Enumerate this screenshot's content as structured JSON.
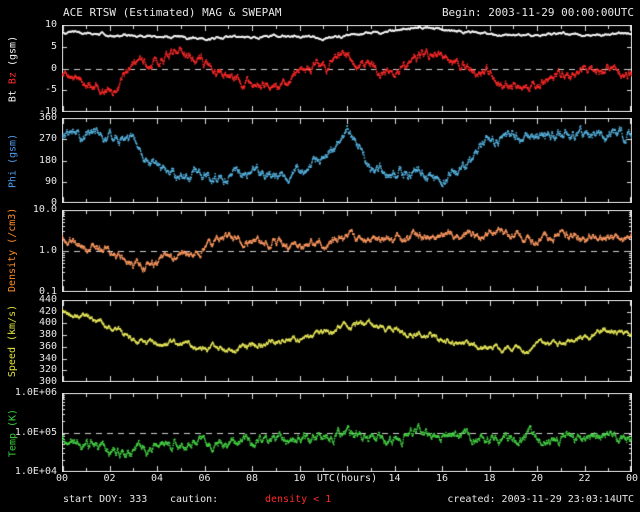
{
  "header": {
    "title": "ACE RTSW (Estimated) MAG & SWEPAM",
    "begin": "Begin: 2003-11-29 00:00:00UTC"
  },
  "footer": {
    "start_doy": "start DOY: 333",
    "caution_label": "caution:",
    "caution_value": "density < 1",
    "created": "created: 2003-11-29 23:03:14UTC"
  },
  "x_axis": {
    "label": "UTC(hours)",
    "ticks": [
      "00",
      "02",
      "04",
      "06",
      "08",
      "10",
      "12",
      "14",
      "16",
      "18",
      "20",
      "22",
      "00"
    ]
  },
  "colors": {
    "background": "#000000",
    "frame": "#e0e0e0",
    "text": "#e8e8e8",
    "dashed": "#d0d0d0",
    "caution_red": "#ff2a2a",
    "bt_white": "#f5f5f5",
    "bz_red": "#ff2a2a",
    "phi_blue": "#58b6e4",
    "density_orange": "#ff9a62",
    "speed_yellow": "#e6e65a",
    "temp_green": "#46d446"
  },
  "chart_data": {
    "type": "scatter",
    "title": "ACE RTSW (Estimated) MAG & SWEPAM",
    "x_label": "UTC(hours)",
    "x_range_hours": [
      0,
      24
    ],
    "anchors_hours": [
      0,
      1,
      2,
      3,
      4,
      5,
      6,
      7,
      8,
      9,
      10,
      11,
      12,
      13,
      14,
      15,
      16,
      17,
      18,
      19,
      20,
      21,
      22,
      23,
      24
    ],
    "panels": [
      {
        "name": "bt-bz",
        "scale": "linear",
        "ylim": [
          -10,
          10
        ],
        "yticks": [
          {
            "value": 10,
            "label": "10"
          },
          {
            "value": 5,
            "label": "5"
          },
          {
            "value": 0,
            "label": "0"
          },
          {
            "value": -5,
            "label": "-5"
          },
          {
            "value": -10,
            "label": "-10"
          }
        ],
        "dashed_at": 0,
        "y_label_parts": [
          {
            "text": "Bt ",
            "color": "#f5f5f5"
          },
          {
            "text": "Bz ",
            "color": "#ff2a2a"
          },
          {
            "text": "(gsm)",
            "color": "#f5f5f5"
          }
        ],
        "series": [
          {
            "name": "Bt",
            "color": "#f5f5f5",
            "noise": 0.5,
            "values": [
              8.5,
              8.3,
              7.6,
              7.4,
              7.3,
              7.0,
              6.6,
              7.0,
              7.4,
              7.5,
              7.4,
              7.1,
              7.6,
              8.0,
              8.8,
              9.5,
              9.0,
              8.4,
              8.0,
              7.9,
              7.6,
              8.0,
              7.6,
              7.9,
              8.1
            ]
          },
          {
            "name": "Bz",
            "color": "#ff2a2a",
            "noise": 2.0,
            "values": [
              -1,
              -4,
              -5,
              0,
              2,
              3,
              1,
              -2,
              -4,
              -4.5,
              -1,
              1,
              3,
              0,
              -2,
              3,
              4,
              1,
              -1,
              -4,
              -3,
              -2,
              0,
              -1,
              -1
            ]
          }
        ]
      },
      {
        "name": "phi",
        "scale": "linear",
        "ylim": [
          0,
          360
        ],
        "yticks": [
          {
            "value": 360,
            "label": "360"
          },
          {
            "value": 270,
            "label": "270"
          },
          {
            "value": 180,
            "label": "180"
          },
          {
            "value": 90,
            "label": "90"
          },
          {
            "value": 0,
            "label": "0"
          }
        ],
        "dashed_at": null,
        "y_label_parts": [
          {
            "text": "Phi ",
            "color": "#4f9cf0"
          },
          {
            "text": "(gsm)",
            "color": "#4f9cf0"
          }
        ],
        "series": [
          {
            "name": "Phi",
            "color": "#58b6e4",
            "noise": 40,
            "values": [
              285,
              295,
              285,
              260,
              145,
              115,
              125,
              115,
              150,
              125,
              135,
              170,
              320,
              140,
              115,
              125,
              105,
              145,
              275,
              290,
              270,
              280,
              295,
              285,
              280
            ]
          }
        ]
      },
      {
        "name": "density",
        "scale": "log",
        "ylim": [
          0.1,
          10
        ],
        "yticks": [
          {
            "value": 10,
            "label": "10.0"
          },
          {
            "value": 1,
            "label": "1.0"
          },
          {
            "value": 0.1,
            "label": "0.1"
          }
        ],
        "dashed_at": 1.0,
        "y_label_parts": [
          {
            "text": "Density ",
            "color": "#ff8c28"
          },
          {
            "text": "(/cm3)",
            "color": "#ff8c28"
          }
        ],
        "series": [
          {
            "name": "Density",
            "color": "#ff9a62",
            "noise": 0.18,
            "values": [
              2.0,
              1.5,
              0.9,
              0.55,
              0.45,
              0.8,
              1.3,
              2.0,
              2.0,
              1.5,
              1.2,
              1.6,
              2.0,
              2.0,
              1.8,
              2.4,
              2.0,
              2.5,
              3.0,
              2.5,
              2.0,
              2.4,
              2.0,
              2.2,
              2.0
            ]
          }
        ]
      },
      {
        "name": "speed",
        "scale": "linear",
        "ylim": [
          300,
          440
        ],
        "yticks": [
          {
            "value": 440,
            "label": "440"
          },
          {
            "value": 420,
            "label": "420"
          },
          {
            "value": 400,
            "label": "400"
          },
          {
            "value": 380,
            "label": "380"
          },
          {
            "value": 360,
            "label": "360"
          },
          {
            "value": 340,
            "label": "340"
          },
          {
            "value": 320,
            "label": "320"
          },
          {
            "value": 300,
            "label": "300"
          }
        ],
        "dashed_at": null,
        "y_label_parts": [
          {
            "text": "Speed ",
            "color": "#e2e23c"
          },
          {
            "text": "(km/s)",
            "color": "#e2e23c"
          }
        ],
        "series": [
          {
            "name": "Speed",
            "color": "#e6e65a",
            "noise": 9,
            "values": [
              420,
              412,
              395,
              375,
              362,
              366,
              358,
              354,
              364,
              370,
              376,
              386,
              396,
              400,
              394,
              384,
              374,
              364,
              358,
              354,
              360,
              366,
              376,
              384,
              386
            ]
          }
        ]
      },
      {
        "name": "temp",
        "scale": "log",
        "ylim": [
          10000,
          1000000
        ],
        "yticks": [
          {
            "value": 1000000,
            "label": "1.0E+06"
          },
          {
            "value": 100000,
            "label": "1.0E+05"
          },
          {
            "value": 10000,
            "label": "1.0E+04"
          }
        ],
        "dashed_at": 100000,
        "y_label_parts": [
          {
            "text": "Temp ",
            "color": "#38d038"
          },
          {
            "text": "(K)",
            "color": "#38d038"
          }
        ],
        "series": [
          {
            "name": "Temp",
            "color": "#46d446",
            "noise": 0.22,
            "values": [
              60000,
              50000,
              35000,
              30000,
              40000,
              50000,
              60000,
              50000,
              65000,
              70000,
              60000,
              80000,
              90000,
              75000,
              70000,
              90000,
              80000,
              70000,
              60000,
              70000,
              80000,
              70000,
              90000,
              80000,
              75000
            ]
          }
        ]
      }
    ]
  }
}
